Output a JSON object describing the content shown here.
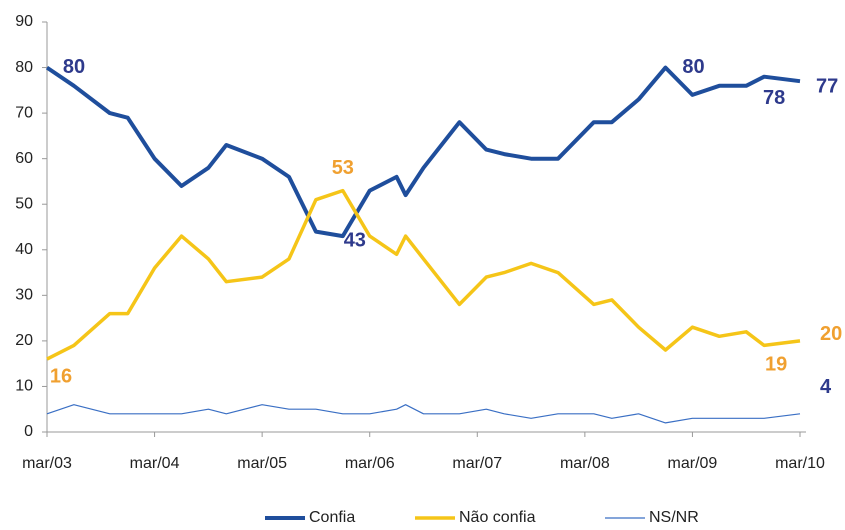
{
  "chart_data": {
    "type": "line",
    "x": [
      "2003-03",
      "2003-06",
      "2003-10",
      "2003-12",
      "2004-03",
      "2004-06",
      "2004-09",
      "2004-11",
      "2005-03",
      "2005-06",
      "2005-09",
      "2005-12",
      "2006-03",
      "2006-06",
      "2006-07",
      "2006-09",
      "2007-01",
      "2007-04",
      "2007-06",
      "2007-09",
      "2007-12",
      "2008-04",
      "2008-06",
      "2008-09",
      "2008-12",
      "2009-03",
      "2009-06",
      "2009-09",
      "2009-11",
      "2010-03"
    ],
    "series": [
      {
        "name": "Confia",
        "color": "#1f4e9c",
        "values": [
          80,
          76,
          70,
          69,
          60,
          54,
          58,
          63,
          60,
          56,
          44,
          43,
          53,
          56,
          52,
          58,
          68,
          62,
          61,
          60,
          60,
          68,
          68,
          73,
          80,
          74,
          76,
          76,
          78,
          77
        ],
        "labeled": [
          0,
          11,
          24,
          28,
          29
        ],
        "label_color": "#2e3a8c"
      },
      {
        "name": "Não confia",
        "color": "#f5c518",
        "values": [
          16,
          19,
          26,
          26,
          36,
          43,
          38,
          33,
          34,
          38,
          51,
          53,
          43,
          39,
          43,
          38,
          28,
          34,
          35,
          37,
          35,
          28,
          29,
          23,
          18,
          23,
          21,
          22,
          19,
          20
        ],
        "labeled": [
          0,
          11,
          28,
          29
        ],
        "label_color": "#f0a030"
      },
      {
        "name": "NS/NR",
        "color": "#3a6fc4",
        "values": [
          4,
          6,
          4,
          4,
          4,
          4,
          5,
          4,
          6,
          5,
          5,
          4,
          4,
          5,
          6,
          4,
          4,
          5,
          4,
          3,
          4,
          4,
          3,
          4,
          2,
          3,
          3,
          3,
          3,
          4
        ],
        "labeled": [
          29
        ],
        "label_color": "#2e3a8c"
      }
    ],
    "xlim": [
      "2003-03",
      "2010-03"
    ],
    "xticks": [
      {
        "value": "2003-03",
        "label": "mar/03"
      },
      {
        "value": "2004-03",
        "label": "mar/04"
      },
      {
        "value": "2005-03",
        "label": "mar/05"
      },
      {
        "value": "2006-03",
        "label": "mar/06"
      },
      {
        "value": "2007-03",
        "label": "mar/07"
      },
      {
        "value": "2008-03",
        "label": "mar/08"
      },
      {
        "value": "2009-03",
        "label": "mar/09"
      },
      {
        "value": "2010-03",
        "label": "mar/10"
      }
    ],
    "ylim": [
      0,
      90
    ],
    "yticks": [
      0,
      10,
      20,
      30,
      40,
      50,
      60,
      70,
      80,
      90
    ],
    "legend": "bottom"
  }
}
